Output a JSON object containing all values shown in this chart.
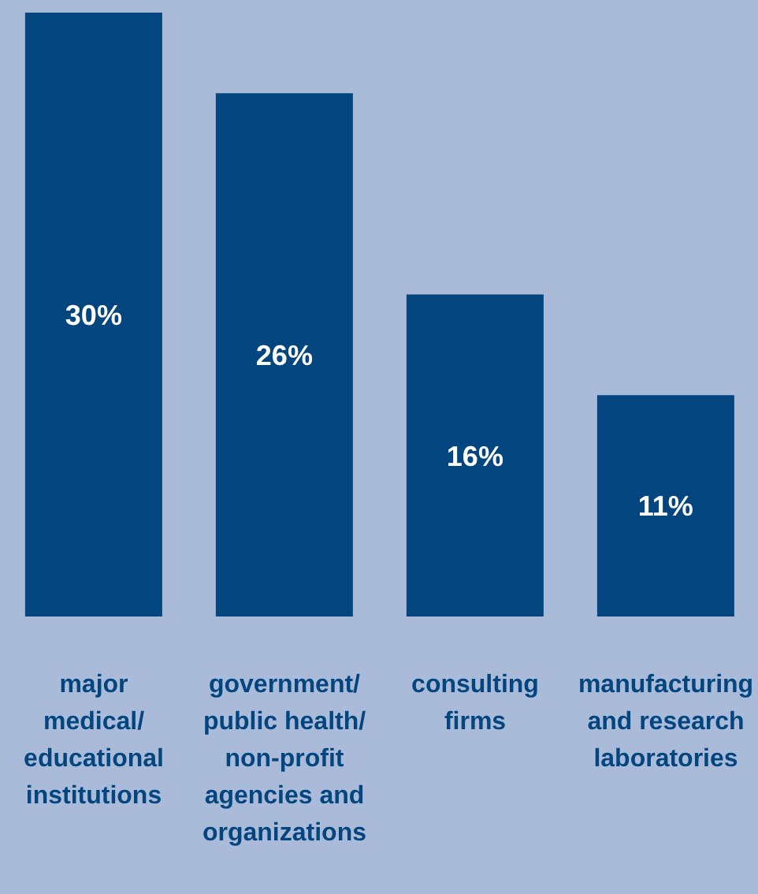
{
  "chart_data": {
    "type": "bar",
    "categories": [
      "major\nmedical/\neducational\ninstitutions",
      "government/\npublic health/\nnon-profit\nagencies and\norganizations",
      "consulting\nfirms",
      "manufacturing\nand research\nlaboratories"
    ],
    "values": [
      30,
      26,
      16,
      11
    ],
    "color": "#03467f",
    "value_labels": [
      "30%",
      "26%",
      "16%",
      "11%"
    ],
    "relative": false,
    "grid": false,
    "legend": false
  }
}
